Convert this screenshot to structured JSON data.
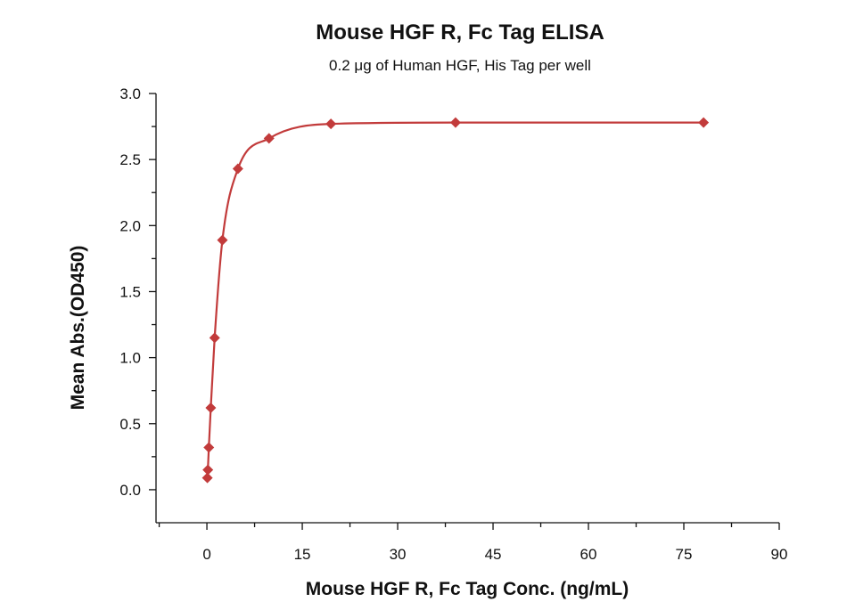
{
  "colors": {
    "series": "#c23b3b",
    "text": "#111111",
    "background": "#ffffff"
  },
  "chart_data": {
    "type": "scatter",
    "title": "Mouse HGF R, Fc Tag ELISA",
    "subtitle": "0.2 μg of Human HGF, His Tag per well",
    "xlabel": "Mouse HGF R, Fc Tag Conc. (ng/mL)",
    "ylabel": "Mean Abs.(OD450)",
    "xlim": [
      -8,
      90
    ],
    "ylim": [
      -0.25,
      3.0
    ],
    "x_ticks": [
      0,
      15,
      30,
      45,
      60,
      75,
      90
    ],
    "x_tick_labels": [
      "0",
      "15",
      "30",
      "45",
      "60",
      "75",
      "90"
    ],
    "y_ticks": [
      0.0,
      0.5,
      1.0,
      1.5,
      2.0,
      2.5,
      3.0
    ],
    "y_tick_labels": [
      "0.0",
      "0.5",
      "1.0",
      "1.5",
      "2.0",
      "2.5",
      "3.0"
    ],
    "grid": false,
    "legend": "none",
    "marker": "diamond",
    "fit": "sigmoidal",
    "series": [
      {
        "x": [
          0.076,
          0.152,
          0.305,
          0.61,
          1.22,
          2.44,
          4.88,
          9.77,
          19.5,
          39.1,
          78.1
        ],
        "y": [
          0.09,
          0.15,
          0.32,
          0.62,
          1.15,
          1.89,
          2.43,
          2.66,
          2.77,
          2.78,
          2.78
        ]
      }
    ]
  }
}
